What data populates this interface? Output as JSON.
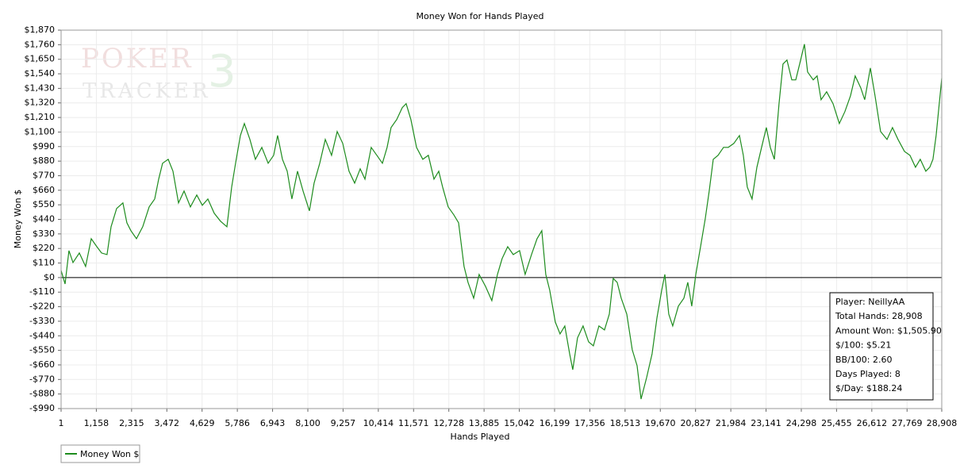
{
  "chart_data": {
    "type": "line",
    "title": "Money Won for Hands Played",
    "x_label": "Hands Played",
    "y_label": "Money Won $",
    "watermark": {
      "line1": "POKER",
      "line2": "TRACKER",
      "badge": "3"
    },
    "info_box": [
      "Player: NeillyAA",
      "Total Hands: 28,908",
      "Amount Won: $1,505.90",
      "$/100: $5.21",
      "BB/100: 2.60",
      "Days Played: 8",
      "$/Day: $188.24"
    ],
    "grid": true,
    "zero_line": true,
    "legend": "bottom-left",
    "xlim": [
      1,
      28908
    ],
    "ylim": [
      -990,
      1870
    ],
    "xticks": [
      1,
      {
        "value": 1158,
        "label": "1,158"
      },
      {
        "value": 2315,
        "label": "2,315"
      },
      {
        "value": 3472,
        "label": "3,472"
      },
      {
        "value": 4629,
        "label": "4,629"
      },
      {
        "value": 5786,
        "label": "5,786"
      },
      {
        "value": 6943,
        "label": "6,943"
      },
      {
        "value": 8100,
        "label": "8,100"
      },
      {
        "value": 9257,
        "label": "9,257"
      },
      {
        "value": 10414,
        "label": "10,414"
      },
      {
        "value": 11571,
        "label": "11,571"
      },
      {
        "value": 12728,
        "label": "12,728"
      },
      {
        "value": 13885,
        "label": "13,885"
      },
      {
        "value": 15042,
        "label": "15,042"
      },
      {
        "value": 16199,
        "label": "16,199"
      },
      {
        "value": 17356,
        "label": "17,356"
      },
      {
        "value": 18513,
        "label": "18,513"
      },
      {
        "value": 19670,
        "label": "19,670"
      },
      {
        "value": 20827,
        "label": "20,827"
      },
      {
        "value": 21984,
        "label": "21,984"
      },
      {
        "value": 23141,
        "label": "23,141"
      },
      {
        "value": 24298,
        "label": "24,298"
      },
      {
        "value": 25455,
        "label": "25,455"
      },
      {
        "value": 26612,
        "label": "26,612"
      },
      {
        "value": 27769,
        "label": "27,769"
      },
      {
        "value": 28908,
        "label": "28,908"
      }
    ],
    "yticks": [
      {
        "value": -990,
        "label": "-$990"
      },
      {
        "value": -880,
        "label": "-$880"
      },
      {
        "value": -770,
        "label": "-$770"
      },
      {
        "value": -660,
        "label": "-$660"
      },
      {
        "value": -550,
        "label": "-$550"
      },
      {
        "value": -440,
        "label": "-$440"
      },
      {
        "value": -330,
        "label": "-$330"
      },
      {
        "value": -220,
        "label": "-$220"
      },
      {
        "value": -110,
        "label": "-$110"
      },
      {
        "value": 0,
        "label": "$0"
      },
      {
        "value": 110,
        "label": "$110"
      },
      {
        "value": 220,
        "label": "$220"
      },
      {
        "value": 330,
        "label": "$330"
      },
      {
        "value": 440,
        "label": "$440"
      },
      {
        "value": 550,
        "label": "$550"
      },
      {
        "value": 660,
        "label": "$660"
      },
      {
        "value": 770,
        "label": "$770"
      },
      {
        "value": 880,
        "label": "$880"
      },
      {
        "value": 990,
        "label": "$990"
      },
      {
        "value": 1100,
        "label": "$1,100"
      },
      {
        "value": 1210,
        "label": "$1,210"
      },
      {
        "value": 1320,
        "label": "$1,320"
      },
      {
        "value": 1430,
        "label": "$1,430"
      },
      {
        "value": 1540,
        "label": "$1,540"
      },
      {
        "value": 1650,
        "label": "$1,650"
      },
      {
        "value": 1760,
        "label": "$1,760"
      },
      {
        "value": 1870,
        "label": "$1,870"
      }
    ],
    "x": [
      1,
      130,
      260,
      391,
      599,
      807,
      990,
      1172,
      1328,
      1510,
      1641,
      1823,
      2031,
      2161,
      2292,
      2474,
      2682,
      2891,
      3073,
      3203,
      3333,
      3516,
      3672,
      3854,
      4037,
      4245,
      4453,
      4636,
      4818,
      5026,
      5234,
      5443,
      5599,
      5729,
      5886,
      6016,
      6198,
      6380,
      6589,
      6797,
      6979,
      7109,
      7266,
      7422,
      7578,
      7761,
      7943,
      8151,
      8307,
      8490,
      8672,
      8880,
      9063,
      9245,
      9453,
      9636,
      9818,
      9974,
      10182,
      10365,
      10547,
      10703,
      10833,
      11016,
      11198,
      11328,
      11484,
      11667,
      11875,
      12057,
      12240,
      12396,
      12526,
      12708,
      12891,
      13047,
      13229,
      13359,
      13542,
      13724,
      13932,
      14140,
      14323,
      14479,
      14661,
      14843,
      15052,
      15234,
      15442,
      15625,
      15781,
      15911,
      16041,
      16224,
      16380,
      16536,
      16693,
      16797,
      16953,
      17135,
      17317,
      17474,
      17656,
      17838,
      17995,
      18125,
      18255,
      18386,
      18568,
      18750,
      18907,
      19037,
      19219,
      19401,
      19558,
      19714,
      19818,
      19948,
      20078,
      20261,
      20443,
      20573,
      20703,
      20834,
      20990,
      21146,
      21276,
      21407,
      21563,
      21745,
      21901,
      22083,
      22266,
      22396,
      22526,
      22682,
      22839,
      22995,
      23151,
      23281,
      23412,
      23568,
      23698,
      23828,
      23985,
      24115,
      24245,
      24401,
      24505,
      24688,
      24818,
      24948,
      25130,
      25339,
      25547,
      25729,
      25912,
      26068,
      26250,
      26380,
      26563,
      26719,
      26901,
      27110,
      27292,
      27474,
      27683,
      27865,
      28047,
      28203,
      28385,
      28515,
      28620,
      28724,
      28908
    ],
    "series": [
      {
        "name": "Money Won $",
        "color": "#1e8c1e",
        "values": [
          54,
          -48,
          204,
          114,
          186,
          84,
          294,
          234,
          186,
          174,
          384,
          522,
          564,
          414,
          354,
          294,
          384,
          534,
          594,
          744,
          864,
          894,
          804,
          564,
          654,
          534,
          624,
          546,
          594,
          486,
          426,
          384,
          684,
          864,
          1074,
          1164,
          1044,
          894,
          984,
          864,
          924,
          1074,
          894,
          804,
          594,
          804,
          654,
          504,
          714,
          864,
          1044,
          924,
          1104,
          1014,
          804,
          714,
          822,
          744,
          984,
          924,
          864,
          984,
          1134,
          1194,
          1284,
          1314,
          1194,
          984,
          894,
          924,
          744,
          804,
          684,
          534,
          474,
          414,
          84,
          -36,
          -156,
          24,
          -66,
          -174,
          24,
          144,
          234,
          174,
          204,
          24,
          174,
          294,
          354,
          24,
          -96,
          -336,
          -426,
          -366,
          -576,
          -696,
          -456,
          -366,
          -486,
          -516,
          -366,
          -396,
          -276,
          -6,
          -36,
          -156,
          -276,
          -546,
          -666,
          -918,
          -756,
          -576,
          -306,
          -96,
          24,
          -276,
          -366,
          -216,
          -156,
          -36,
          -216,
          24,
          234,
          444,
          654,
          894,
          924,
          984,
          984,
          1014,
          1074,
          924,
          684,
          594,
          834,
          984,
          1134,
          984,
          894,
          1314,
          1614,
          1644,
          1494,
          1494,
          1614,
          1764,
          1554,
          1494,
          1524,
          1344,
          1404,
          1314,
          1164,
          1254,
          1374,
          1524,
          1434,
          1344,
          1584,
          1374,
          1104,
          1044,
          1134,
          1044,
          954,
          924,
          834,
          894,
          804,
          834,
          894,
          1074,
          1506
        ]
      }
    ]
  }
}
